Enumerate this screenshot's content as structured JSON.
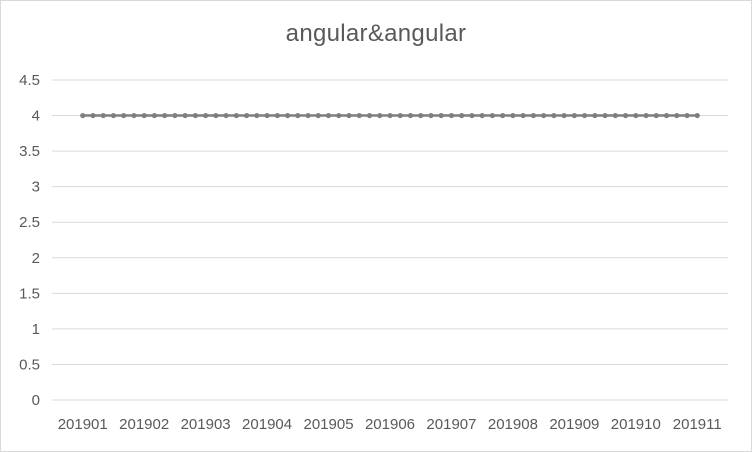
{
  "chart_data": {
    "type": "line",
    "title": "angular&angular",
    "xlabel": "",
    "ylabel": "",
    "categories": [
      "201901",
      "201902",
      "201903",
      "201904",
      "201905",
      "201906",
      "201907",
      "201908",
      "201909",
      "201910",
      "201911"
    ],
    "y_ticks": [
      "0",
      "0.5",
      "1",
      "1.5",
      "2",
      "2.5",
      "3",
      "3.5",
      "4",
      "4.5"
    ],
    "ylim": [
      0,
      4.5
    ],
    "grid": true,
    "legend": "none",
    "series": [
      {
        "color": "#7f7f7f",
        "marker": "circle",
        "points_per_category": 6,
        "x": [
          "201901",
          "201911"
        ],
        "values": [
          4,
          4
        ]
      }
    ]
  }
}
